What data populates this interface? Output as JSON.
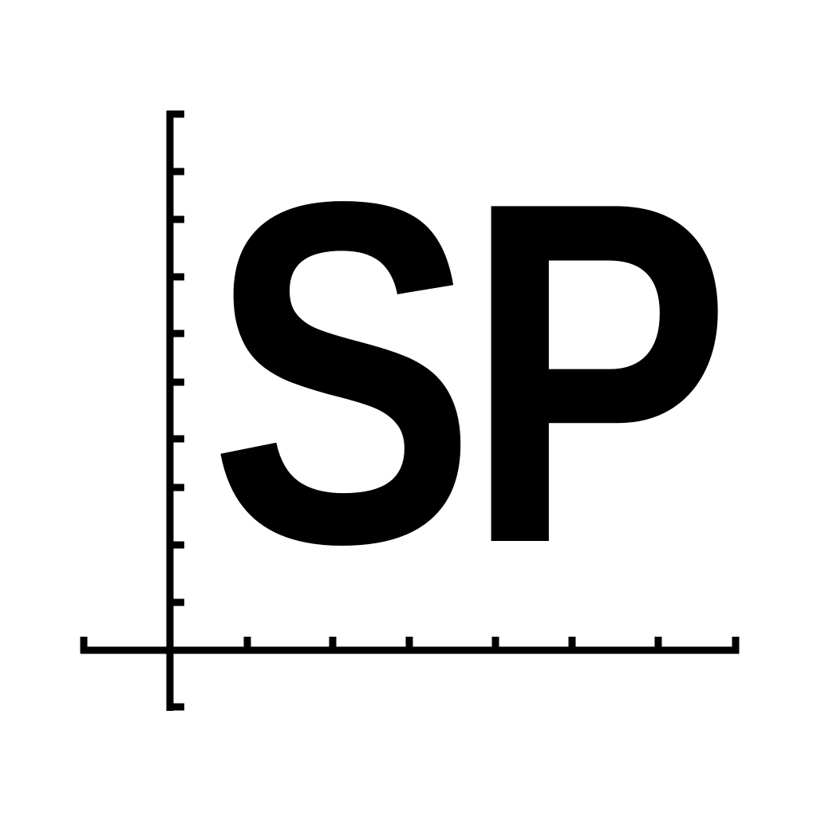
{
  "logo": {
    "text": "SP",
    "icon": "axes-logo-icon",
    "colors": {
      "foreground": "#000000",
      "background": "#ffffff"
    }
  }
}
